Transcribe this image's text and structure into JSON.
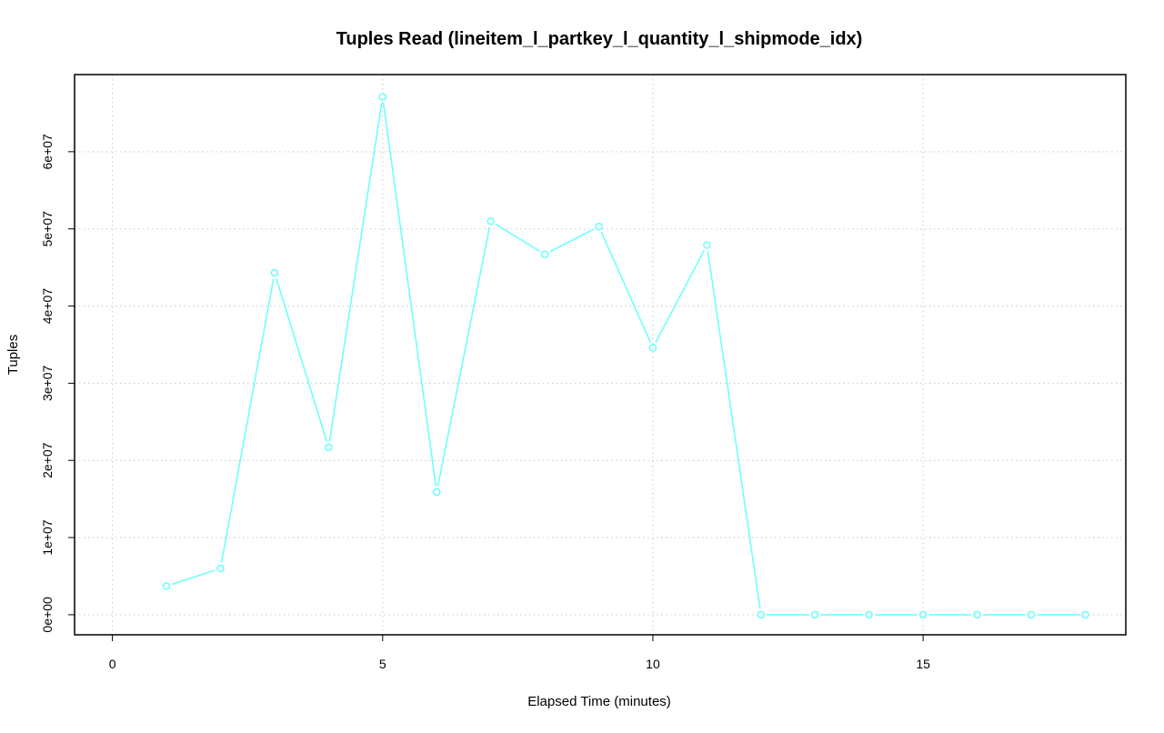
{
  "chart_data": {
    "type": "line",
    "title": "Tuples Read (lineitem_l_partkey_l_quantity_l_shipmode_idx)",
    "xlabel": "Elapsed Time (minutes)",
    "ylabel": "Tuples",
    "xlim": [
      -0.7,
      18.75
    ],
    "ylim": [
      -2600000,
      70000000
    ],
    "x_ticks": [
      0,
      5,
      10,
      15
    ],
    "x_tick_labels": [
      "0",
      "5",
      "10",
      "15"
    ],
    "y_ticks": [
      0,
      10000000,
      20000000,
      30000000,
      40000000,
      50000000,
      60000000
    ],
    "y_tick_labels": [
      "0e+00",
      "1e+07",
      "2e+07",
      "3e+07",
      "4e+07",
      "5e+07",
      "6e+07"
    ],
    "grid": true,
    "series": [
      {
        "color": "#66ffff",
        "marker": "circle",
        "x": [
          1,
          2,
          3,
          4,
          5,
          6,
          7,
          8,
          9,
          10,
          11,
          12,
          13,
          14,
          15,
          16,
          17,
          18
        ],
        "values": [
          3700000,
          6000000,
          44300000,
          21700000,
          67100000,
          15900000,
          51000000,
          46700000,
          50300000,
          34600000,
          47900000,
          0,
          0,
          0,
          0,
          0,
          0,
          0
        ]
      }
    ]
  }
}
